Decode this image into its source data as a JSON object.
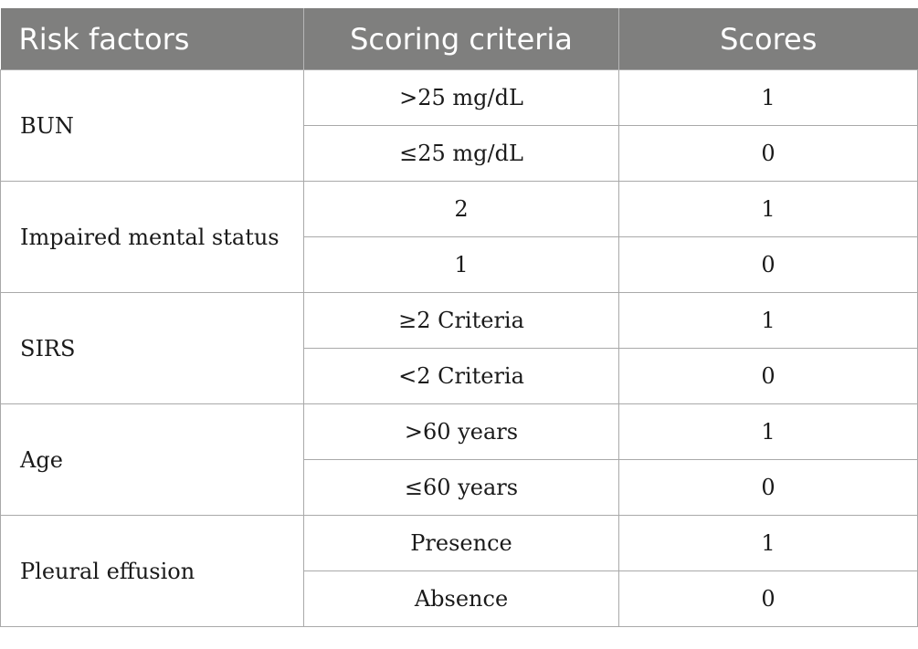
{
  "headers": [
    "Risk factors",
    "Scoring criteria",
    "Scores"
  ],
  "rows": [
    {
      "factor": "BUN",
      "criteria": [
        {
          "criterion": ">25 mg/dL",
          "score": "1"
        },
        {
          "criterion": "≤25 mg/dL",
          "score": "0"
        }
      ]
    },
    {
      "factor": "Impaired mental status",
      "criteria": [
        {
          "criterion": "2",
          "score": "1"
        },
        {
          "criterion": "1",
          "score": "0"
        }
      ]
    },
    {
      "factor": "SIRS",
      "criteria": [
        {
          "criterion": "≥2 Criteria",
          "score": "1"
        },
        {
          "criterion": "<2 Criteria",
          "score": "0"
        }
      ]
    },
    {
      "factor": "Age",
      "criteria": [
        {
          "criterion": ">60 years",
          "score": "1"
        },
        {
          "criterion": "≤60 years",
          "score": "0"
        }
      ]
    },
    {
      "factor": "Pleural effusion",
      "criteria": [
        {
          "criterion": "Presence",
          "score": "1"
        },
        {
          "criterion": "Absence",
          "score": "0"
        }
      ]
    }
  ]
}
